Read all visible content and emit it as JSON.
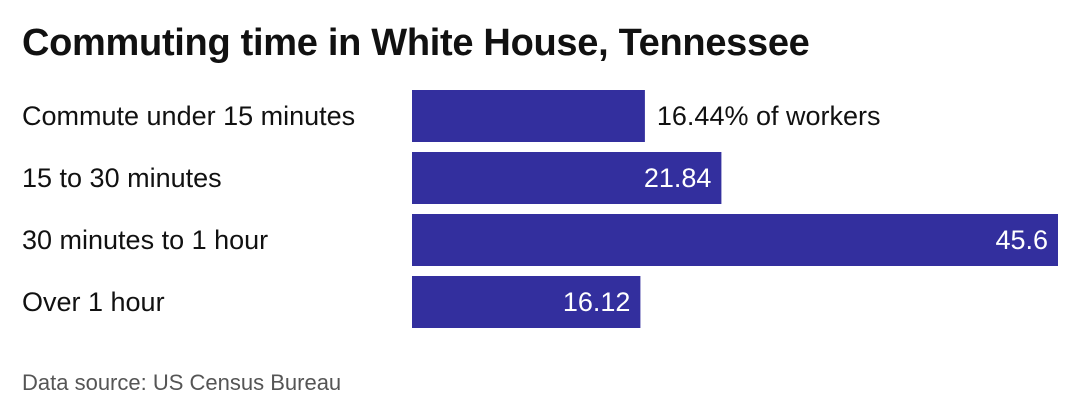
{
  "chart_data": {
    "type": "bar",
    "orientation": "horizontal",
    "title": "Commuting time in White House, Tennessee",
    "categories": [
      "Commute under 15 minutes",
      "15 to 30 minutes",
      "30 minutes to 1 hour",
      "Over 1 hour"
    ],
    "values": [
      16.44,
      21.84,
      45.6,
      16.12
    ],
    "value_labels": [
      "16.44% of workers",
      "21.84",
      "45.6",
      "16.12"
    ],
    "xlim": [
      0,
      45.6
    ],
    "grid": false,
    "legend": "none",
    "bar_color": "#332f9e",
    "source": "Data source: US Census Bureau"
  }
}
